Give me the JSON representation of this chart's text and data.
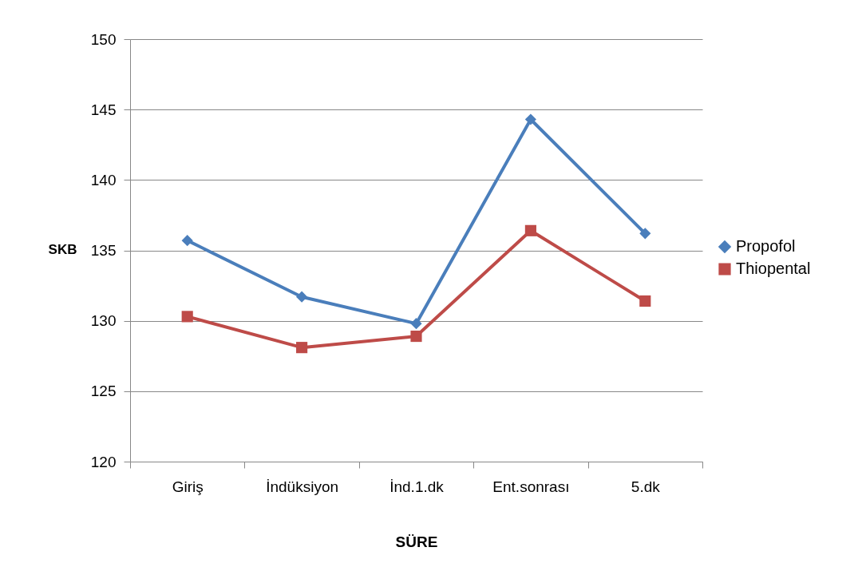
{
  "chart_data": {
    "type": "line",
    "xlabel": "SÜRE",
    "ylabel": "SKB",
    "categories": [
      "Giriş",
      "İndüksiyon",
      "İnd.1.dk",
      "Ent.sonrası",
      "5.dk"
    ],
    "series": [
      {
        "name": "Propofol",
        "color": "#4a7ebb",
        "marker": "diamond",
        "values": [
          135.7,
          131.7,
          129.8,
          144.3,
          136.2
        ]
      },
      {
        "name": "Thiopental",
        "color": "#be4b48",
        "marker": "square",
        "values": [
          130.3,
          128.1,
          128.9,
          136.4,
          131.4
        ]
      }
    ],
    "ylim": [
      120,
      150
    ],
    "yticks": [
      120,
      125,
      130,
      135,
      140,
      145,
      150
    ],
    "grid": "y",
    "legend": "right"
  }
}
